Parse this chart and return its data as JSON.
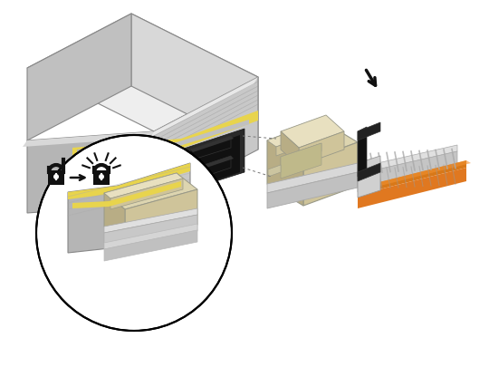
{
  "bg_color": "#ffffff",
  "figsize": [
    5.4,
    4.05
  ],
  "dpi": 100,
  "transceiver": {
    "top_face": "#eeeeee",
    "right_face": "#d8d8d8",
    "left_face": "#c0c0c0",
    "front_face": "#d0d0d0",
    "front_dark": "#b8b8b8",
    "yellow_stripe": "#e8d44d",
    "black_port": "#1a1a1a",
    "edge_color": "#888888",
    "ribbed_color": "#999999"
  },
  "connector": {
    "top_face": "#ddd5b0",
    "right_face": "#cfc49a",
    "left_face": "#b8ad85",
    "highlight": "#e8e0c0",
    "edge_color": "#999988",
    "cable_gray": "#c8c8c8",
    "cable_dark": "#a0a0a0",
    "orange": "#e07820",
    "orange2": "#f09030"
  },
  "lock_color": "#111111",
  "dashed_color": "#777777",
  "arrow_color": "#111111",
  "circle_color": "#000000"
}
